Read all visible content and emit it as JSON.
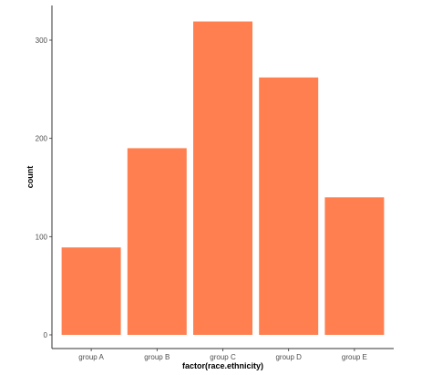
{
  "chart_data": {
    "type": "bar",
    "title": "",
    "xlabel": "factor(race.ethnicity)",
    "ylabel": "count",
    "categories": [
      "group A",
      "group B",
      "group C",
      "group D",
      "group E"
    ],
    "values": [
      89,
      190,
      319,
      262,
      140
    ],
    "ylim": [
      0,
      335
    ],
    "yticks": [
      0,
      100,
      200,
      300
    ],
    "bar_color": "#ff7f50",
    "axis_color": "#333333",
    "grid": false,
    "legend": "none"
  }
}
